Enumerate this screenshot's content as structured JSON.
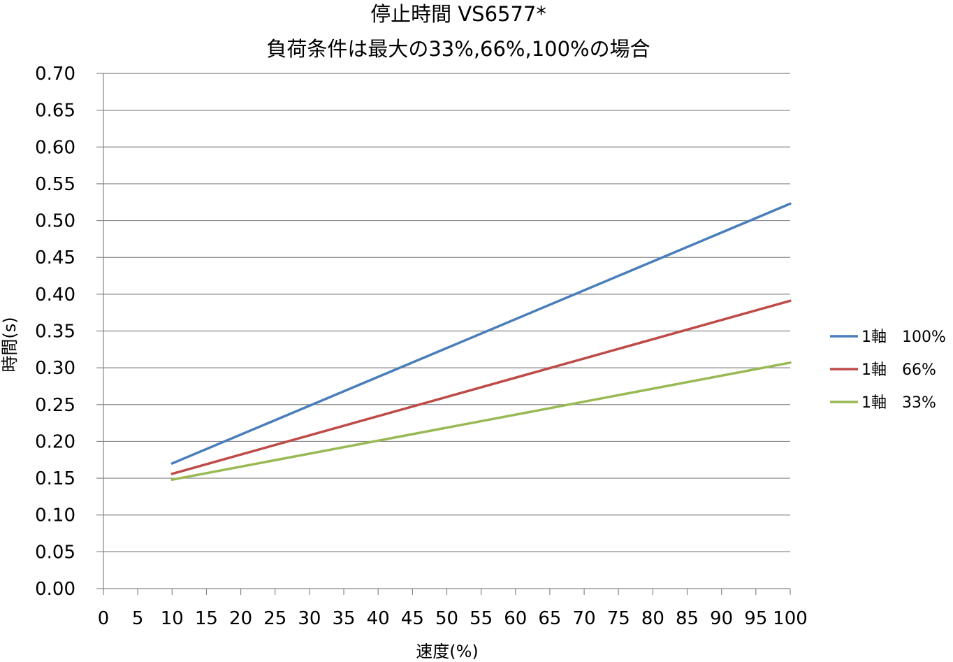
{
  "chart_data": {
    "type": "line",
    "title_lines": [
      "停止時間 VS6577*",
      "負荷条件は最大の33%,66%,100%の場合"
    ],
    "xlabel": "速度(%)",
    "ylabel": "時間(s)",
    "xlim": [
      0,
      100
    ],
    "ylim": [
      0,
      0.7
    ],
    "x_ticks": [
      "0",
      "5",
      "10",
      "15",
      "20",
      "25",
      "30",
      "35",
      "40",
      "45",
      "50",
      "55",
      "60",
      "65",
      "70",
      "75",
      "80",
      "85",
      "90",
      "95",
      "100"
    ],
    "y_ticks": [
      "0.00",
      "0.05",
      "0.10",
      "0.15",
      "0.20",
      "0.25",
      "0.30",
      "0.35",
      "0.40",
      "0.45",
      "0.50",
      "0.55",
      "0.60",
      "0.65",
      "0.70"
    ],
    "grid": "horizontal",
    "legend_position": "right",
    "series": [
      {
        "name": "1軸　100%",
        "color": "#4a7ebb",
        "x": [
          10,
          100
        ],
        "y": [
          0.17,
          0.523
        ]
      },
      {
        "name": "1軸　66%",
        "color": "#be4b48",
        "x": [
          10,
          100
        ],
        "y": [
          0.156,
          0.391
        ]
      },
      {
        "name": "1軸　33%",
        "color": "#98b954",
        "x": [
          10,
          100
        ],
        "y": [
          0.148,
          0.307
        ]
      }
    ]
  }
}
